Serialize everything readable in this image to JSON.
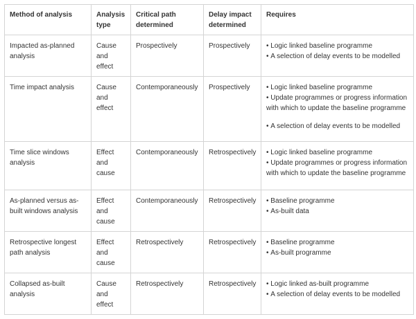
{
  "table": {
    "header": [
      "Method of analysis",
      "Analysis type",
      "Critical path determined",
      "Delay impact determined",
      "Requires"
    ],
    "rows": [
      [
        "Impacted as-planned analysis",
        "Cause and effect",
        "Prospectively",
        "Prospectively",
        [
          [
            "Logic linked baseline programme",
            "A selection of delay events to be modelled"
          ]
        ]
      ],
      [
        "Time impact analysis",
        "Cause and effect",
        "Contemporaneously",
        "Prospectively",
        [
          [
            "Logic linked baseline programme",
            "Update programmes or progress information with which to update the baseline programme"
          ],
          [
            "A selection of delay events to be modelled"
          ]
        ]
      ],
      [
        "Time slice windows analysis",
        "Effect and cause",
        "Contemporaneously",
        "Retrospectively",
        [
          [
            "Logic linked baseline programme",
            "Update programmes or progress information with which to update the baseline programme"
          ]
        ]
      ],
      [
        "As-planned versus as-built windows analysis",
        "Effect and cause",
        "Contemporaneously",
        "Retrospectively",
        [
          [
            "Baseline programme",
            "As-built data"
          ]
        ]
      ],
      [
        "Retrospective longest path analysis",
        "Effect and cause",
        "Retrospectively",
        "Retrospectively",
        [
          [
            "Baseline programme",
            "As-built programme"
          ]
        ]
      ],
      [
        "Collapsed as-built analysis",
        "Cause and effect",
        "Retrospectively",
        "Retrospectively",
        [
          [
            "Logic linked as-built programme",
            "A selection of delay events to be modelled"
          ]
        ]
      ]
    ]
  }
}
